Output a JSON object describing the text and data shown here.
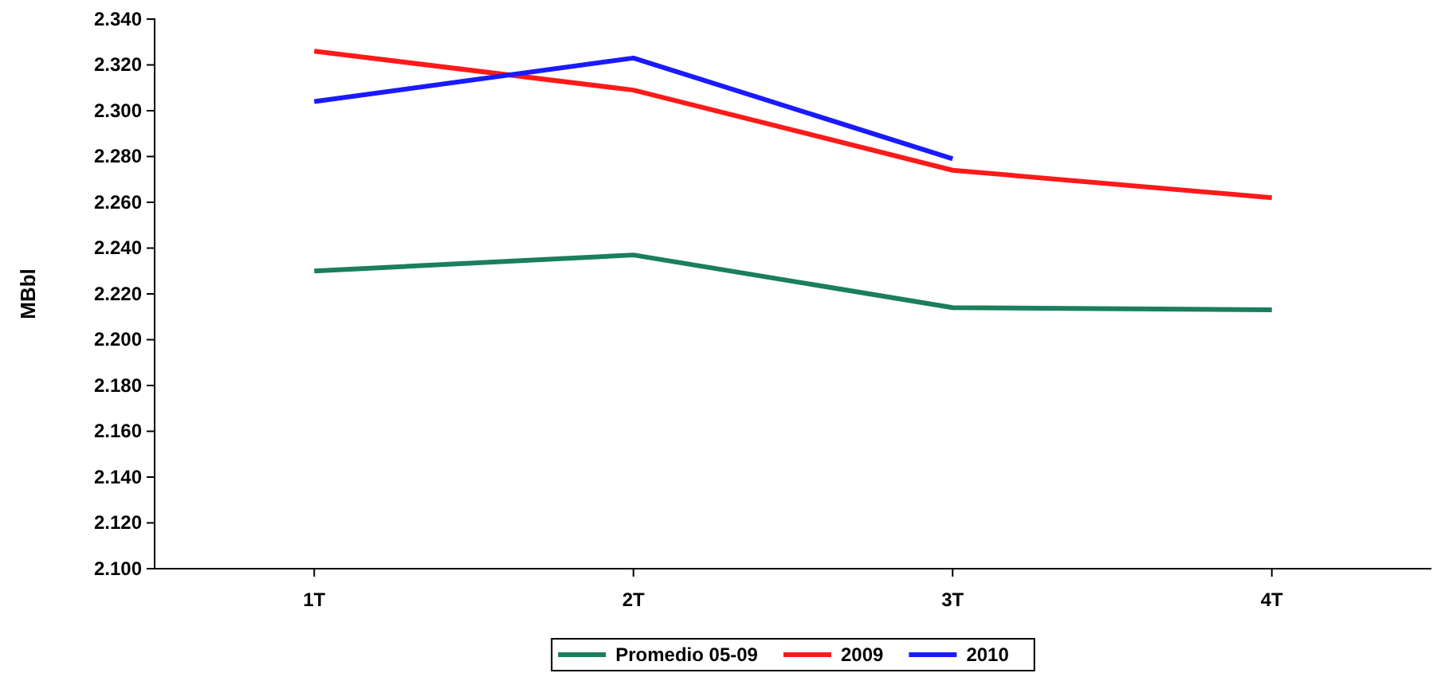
{
  "chart_data": {
    "type": "line",
    "ylabel": "MBbl",
    "categories": [
      "1T",
      "2T",
      "3T",
      "4T"
    ],
    "series": [
      {
        "name": "Promedio 05-09",
        "color": "#1a7f5a",
        "values": [
          2.23,
          2.237,
          2.214,
          2.213
        ]
      },
      {
        "name": "2009",
        "color": "#ff1a1a",
        "values": [
          2.326,
          2.309,
          2.274,
          2.262
        ]
      },
      {
        "name": "2010",
        "color": "#1a1aff",
        "values": [
          2.304,
          2.323,
          2.279,
          null
        ]
      }
    ],
    "ylim": [
      2.1,
      2.34
    ],
    "yticks": [
      {
        "value": 2.1,
        "label": "2.100"
      },
      {
        "value": 2.12,
        "label": "2.120"
      },
      {
        "value": 2.14,
        "label": "2.140"
      },
      {
        "value": 2.16,
        "label": "2.160"
      },
      {
        "value": 2.18,
        "label": "2.180"
      },
      {
        "value": 2.2,
        "label": "2.200"
      },
      {
        "value": 2.22,
        "label": "2.220"
      },
      {
        "value": 2.24,
        "label": "2.240"
      },
      {
        "value": 2.26,
        "label": "2.260"
      },
      {
        "value": 2.28,
        "label": "2.280"
      },
      {
        "value": 2.3,
        "label": "2.300"
      },
      {
        "value": 2.32,
        "label": "2.320"
      },
      {
        "value": 2.34,
        "label": "2.340"
      }
    ],
    "legend": "bottom",
    "marker": "none",
    "line_style": "solid"
  }
}
